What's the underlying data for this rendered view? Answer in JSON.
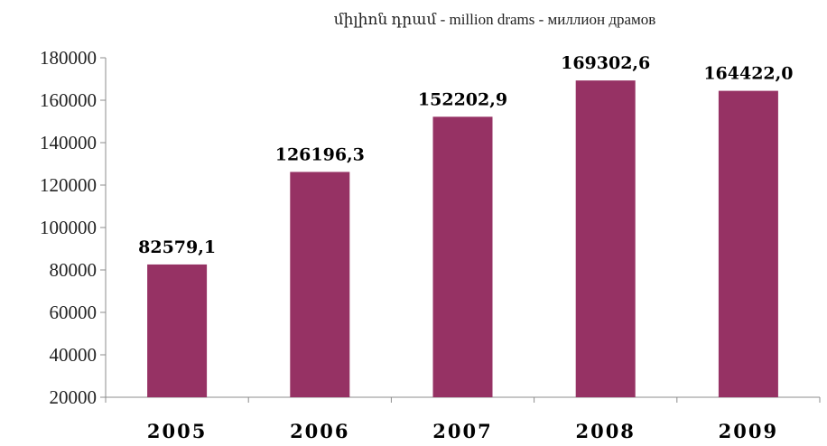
{
  "chart_data": {
    "type": "bar",
    "unit_label": "միլիոն դրամ - million drams - миллион драмов",
    "categories": [
      "2005",
      "2006",
      "2007",
      "2008",
      "2009"
    ],
    "values": [
      82579.1,
      126196.3,
      152202.9,
      169302.6,
      164422.0
    ],
    "data_labels": [
      "82579,1",
      "126196,3",
      "152202,9",
      "169302,6",
      "164422,0"
    ],
    "ylim": [
      20000,
      180000
    ],
    "yticks": [
      20000,
      40000,
      60000,
      80000,
      100000,
      120000,
      140000,
      160000,
      180000
    ],
    "ytick_labels": [
      "20000",
      "40000",
      "60000",
      "80000",
      "100000",
      "120000",
      "140000",
      "160000",
      "180000"
    ],
    "bar_color": "#963264",
    "grid": false,
    "legend": false
  }
}
